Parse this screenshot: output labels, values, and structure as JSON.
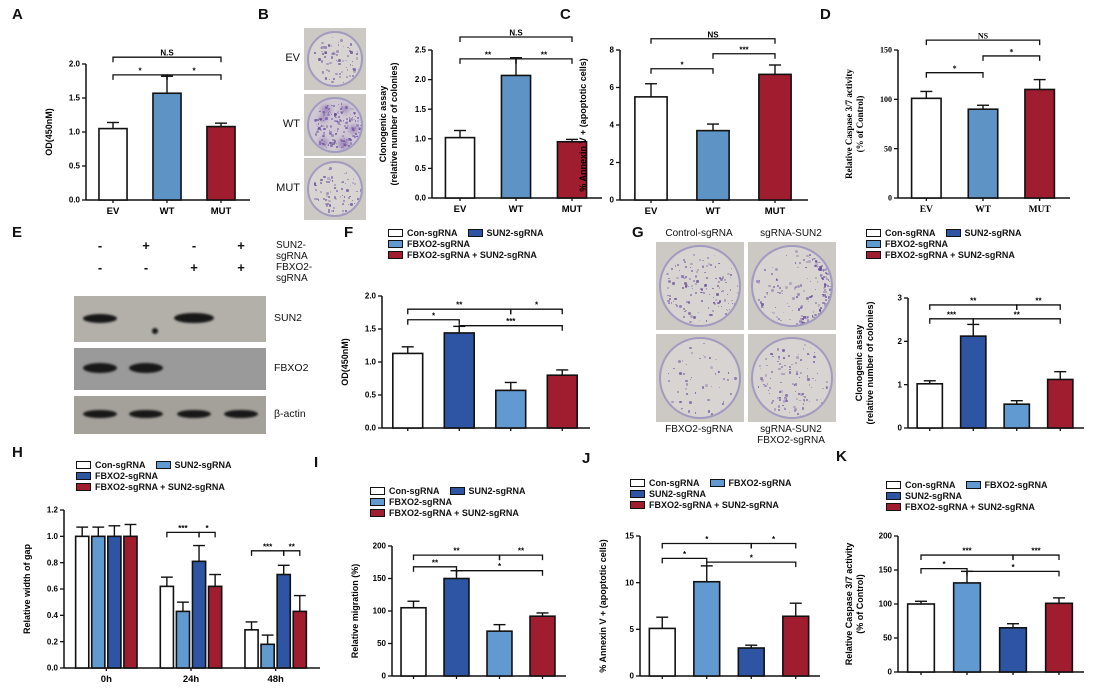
{
  "figure": {
    "background": "#ffffff"
  },
  "colors": {
    "white": "#ffffff",
    "blue_panelA": "#5e93c5",
    "blue_dark": "#2d55a4",
    "blue_light": "#6199d1",
    "red_dark": "#a01d30"
  },
  "panels": {
    "A": {
      "label": "A",
      "chart_data": {
        "type": "bar",
        "categories": [
          "EV",
          "WT",
          "MUT"
        ],
        "values": [
          1.05,
          1.57,
          1.08
        ],
        "errors": [
          0.09,
          0.25,
          0.05
        ],
        "bar_colors": [
          "#ffffff",
          "#5e93c5",
          "#a01d30"
        ],
        "ylabel": "OD(450nM)",
        "ylim": [
          0,
          2.0
        ],
        "yticks": [
          "0.0",
          "0.5",
          "1.0",
          "1.5",
          "2.0"
        ],
        "significance": [
          {
            "a": 0,
            "b": 1,
            "label": "*",
            "y": 1.84
          },
          {
            "a": 1,
            "b": 2,
            "label": "*",
            "y": 1.84
          },
          {
            "a": 0,
            "b": 2,
            "label": "N.S",
            "y": 2.1
          }
        ]
      }
    },
    "B": {
      "label": "B",
      "images": [
        {
          "label": "EV"
        },
        {
          "label": "WT"
        },
        {
          "label": "MUT"
        }
      ],
      "chart_data": {
        "type": "bar",
        "categories": [
          "EV",
          "WT",
          "MUT"
        ],
        "values": [
          1.02,
          2.07,
          0.95
        ],
        "errors": [
          0.12,
          0.3,
          0.04
        ],
        "bar_colors": [
          "#ffffff",
          "#5e93c5",
          "#a01d30"
        ],
        "ylabel": "Clonogenic assay\n(relative number of colonies)",
        "ylim": [
          0,
          2.5
        ],
        "yticks": [
          "0.0",
          "0.5",
          "1.0",
          "1.5",
          "2.0",
          "2.5"
        ],
        "significance": [
          {
            "a": 0,
            "b": 1,
            "label": "**",
            "y": 2.35
          },
          {
            "a": 1,
            "b": 2,
            "label": "**",
            "y": 2.35
          },
          {
            "a": 0,
            "b": 2,
            "label": "N.S",
            "y": 2.72
          }
        ]
      }
    },
    "C": {
      "label": "C",
      "chart_data": {
        "type": "bar",
        "categories": [
          "EV",
          "WT",
          "MUT"
        ],
        "values": [
          5.5,
          3.7,
          6.7
        ],
        "errors": [
          0.7,
          0.35,
          0.5
        ],
        "bar_colors": [
          "#ffffff",
          "#5e93c5",
          "#a01d30"
        ],
        "ylabel": "% Annexin V + (apoptotic cells)",
        "ylim": [
          0,
          8
        ],
        "yticks": [
          "0",
          "2",
          "4",
          "6",
          "8"
        ],
        "significance": [
          {
            "a": 0,
            "b": 1,
            "label": "*",
            "y": 7.0
          },
          {
            "a": 1,
            "b": 2,
            "label": "***",
            "y": 7.8
          },
          {
            "a": 0,
            "b": 2,
            "label": "NS",
            "y": 8.6
          }
        ]
      }
    },
    "D": {
      "label": "D",
      "chart_data": {
        "type": "bar",
        "categories": [
          "EV",
          "WT",
          "MUT"
        ],
        "values": [
          101,
          90,
          110
        ],
        "errors": [
          7,
          4,
          10
        ],
        "bar_colors": [
          "#ffffff",
          "#5e93c5",
          "#a01d30"
        ],
        "ylabel": "Relative Caspase 3/7 activity\n(% of Control)",
        "ylim": [
          0,
          150
        ],
        "yticks": [
          "0",
          "50",
          "100",
          "150"
        ],
        "significance": [
          {
            "a": 0,
            "b": 1,
            "label": "*",
            "y": 127
          },
          {
            "a": 1,
            "b": 2,
            "label": "*",
            "y": 144
          },
          {
            "a": 0,
            "b": 2,
            "label": "NS",
            "y": 160
          }
        ]
      }
    },
    "E": {
      "label": "E",
      "header_rows": [
        {
          "label": "SUN2-sgRNA",
          "signs": [
            "-",
            "+",
            "-",
            "+"
          ]
        },
        {
          "label": "FBXO2-sgRNA",
          "signs": [
            "-",
            "-",
            "+",
            "+"
          ]
        }
      ],
      "blots": [
        {
          "label": "SUN2",
          "bands": [
            1,
            0,
            1.2,
            0
          ],
          "artifact_dot": true
        },
        {
          "label": "FBXO2",
          "bands": [
            1,
            1,
            0,
            0
          ],
          "artifact_dot": false
        },
        {
          "label": "β-actin",
          "bands": [
            1,
            1,
            1,
            1
          ],
          "artifact_dot": false
        }
      ]
    },
    "F": {
      "label": "F",
      "chart_data": {
        "type": "bar",
        "categories": [
          "Con-sgRNA",
          "SUN2-sgRNA",
          "FBXO2-sgRNA",
          "FBXO2-sgRNA + SUN2-sgRNA"
        ],
        "values": [
          1.13,
          1.44,
          0.57,
          0.8
        ],
        "errors": [
          0.1,
          0.1,
          0.12,
          0.08
        ],
        "bar_colors": [
          "#ffffff",
          "#2d55a4",
          "#6199d1",
          "#a01d30"
        ],
        "ylabel": "OD(450nM)",
        "ylim": [
          0,
          2.0
        ],
        "yticks": [
          "0.0",
          "0.5",
          "1.0",
          "1.5",
          "2.0"
        ],
        "significance": [
          {
            "a": 0,
            "b": 1,
            "label": "*",
            "y": 1.64
          },
          {
            "a": 0,
            "b": 2,
            "label": "**",
            "y": 1.8
          },
          {
            "a": 1,
            "b": 3,
            "label": "***",
            "y": 1.55
          },
          {
            "a": 2,
            "b": 3,
            "label": "*",
            "y": 1.8
          }
        ],
        "legend": {
          "rows": [
            [
              0,
              1
            ],
            [
              2
            ],
            [
              3
            ]
          ],
          "items": [
            {
              "label": "Con-sgRNA",
              "color": "#ffffff"
            },
            {
              "label": "SUN2-sgRNA",
              "color": "#2d55a4"
            },
            {
              "label": "FBXO2-sgRNA",
              "color": "#6199d1"
            },
            {
              "label": "FBXO2-sgRNA + SUN2-sgRNA",
              "color": "#a01d30"
            }
          ]
        }
      }
    },
    "G": {
      "label": "G",
      "images": [
        {
          "label": "Control-sgRNA"
        },
        {
          "label": "sgRNA-SUN2"
        },
        {
          "label": "FBXO2-sgRNA"
        },
        {
          "label": "sgRNA-SUN2\nFBXO2-sgRNA"
        }
      ],
      "chart_data": {
        "type": "bar",
        "categories": [
          "Con-sgRNA",
          "SUN2-sgRNA",
          "FBXO2-sgRNA",
          "FBXO2-sgRNA + SUN2-sgRNA"
        ],
        "values": [
          1.02,
          2.12,
          0.55,
          1.12
        ],
        "errors": [
          0.07,
          0.27,
          0.08,
          0.18
        ],
        "bar_colors": [
          "#ffffff",
          "#2d55a4",
          "#6199d1",
          "#a01d30"
        ],
        "ylabel": "Clonogenic assay\n(relative number of colonies)",
        "ylim": [
          0,
          3
        ],
        "yticks": [
          "0",
          "1",
          "2",
          "3"
        ],
        "significance": [
          {
            "a": 0,
            "b": 1,
            "label": "***",
            "y": 2.52
          },
          {
            "a": 0,
            "b": 2,
            "label": "**",
            "y": 2.84
          },
          {
            "a": 1,
            "b": 3,
            "label": "**",
            "y": 2.52
          },
          {
            "a": 2,
            "b": 3,
            "label": "**",
            "y": 2.84
          }
        ],
        "legend": {
          "rows": [
            [
              0,
              1
            ],
            [
              2
            ],
            [
              3
            ]
          ],
          "items": [
            {
              "label": "Con-sgRNA",
              "color": "#ffffff"
            },
            {
              "label": "SUN2-sgRNA",
              "color": "#2d55a4"
            },
            {
              "label": "FBXO2-sgRNA",
              "color": "#6199d1"
            },
            {
              "label": "FBXO2-sgRNA + SUN2-sgRNA",
              "color": "#a01d30"
            }
          ]
        }
      }
    },
    "H": {
      "label": "H",
      "chart_data": {
        "type": "bar",
        "categories": [
          "0h",
          "24h",
          "48h"
        ],
        "series": [
          {
            "name": "Con-sgRNA",
            "color": "#ffffff",
            "values": [
              1.0,
              0.62,
              0.29
            ],
            "errors": [
              0.07,
              0.07,
              0.06
            ]
          },
          {
            "name": "SUN2-sgRNA",
            "color": "#6199d1",
            "values": [
              1.0,
              0.43,
              0.18
            ],
            "errors": [
              0.07,
              0.07,
              0.07
            ]
          },
          {
            "name": "FBXO2-sgRNA",
            "color": "#2d55a4",
            "values": [
              1.0,
              0.81,
              0.71
            ],
            "errors": [
              0.08,
              0.12,
              0.07
            ]
          },
          {
            "name": "FBXO2-sgRNA + SUN2-sgRNA",
            "color": "#a01d30",
            "values": [
              1.0,
              0.62,
              0.43
            ],
            "errors": [
              0.09,
              0.09,
              0.12
            ]
          }
        ],
        "ylabel": "Relative width of gap",
        "ylim": [
          0,
          1.2
        ],
        "yticks": [
          "0.0",
          "0.2",
          "0.4",
          "0.6",
          "0.8",
          "1.0",
          "1.2"
        ],
        "significance": [
          {
            "a": [
              1,
              0
            ],
            "b": [
              1,
              2
            ],
            "label": "***",
            "y": 1.03
          },
          {
            "a": [
              1,
              2
            ],
            "b": [
              1,
              3
            ],
            "label": "*",
            "y": 1.03
          },
          {
            "a": [
              2,
              0
            ],
            "b": [
              2,
              2
            ],
            "label": "***",
            "y": 0.89
          },
          {
            "a": [
              2,
              2
            ],
            "b": [
              2,
              3
            ],
            "label": "**",
            "y": 0.89
          }
        ],
        "legend": {
          "rows": [
            [
              0,
              1
            ],
            [
              2
            ],
            [
              3
            ]
          ],
          "items": [
            {
              "label": "Con-sgRNA",
              "color": "#ffffff"
            },
            {
              "label": "SUN2-sgRNA",
              "color": "#6199d1"
            },
            {
              "label": "FBXO2-sgRNA",
              "color": "#2d55a4"
            },
            {
              "label": "FBXO2-sgRNA + SUN2-sgRNA",
              "color": "#a01d30"
            }
          ]
        }
      }
    },
    "I": {
      "label": "I",
      "chart_data": {
        "type": "bar",
        "categories": [
          "Con-sgRNA",
          "SUN2-sgRNA",
          "FBXO2-sgRNA",
          "FBXO2-sgRNA + SUN2-sgRNA"
        ],
        "values": [
          105,
          150,
          69,
          92
        ],
        "errors": [
          10,
          12,
          10,
          5
        ],
        "bar_colors": [
          "#ffffff",
          "#2d55a4",
          "#6199d1",
          "#a01d30"
        ],
        "ylabel": "Relative migration (%)",
        "ylim": [
          0,
          200
        ],
        "yticks": [
          "0",
          "50",
          "100",
          "150",
          "200"
        ],
        "significance": [
          {
            "a": 0,
            "b": 1,
            "label": "**",
            "y": 168
          },
          {
            "a": 0,
            "b": 2,
            "label": "**",
            "y": 186
          },
          {
            "a": 1,
            "b": 3,
            "label": "*",
            "y": 162
          },
          {
            "a": 2,
            "b": 3,
            "label": "**",
            "y": 186
          }
        ],
        "legend": {
          "rows": [
            [
              0,
              1
            ],
            [
              2
            ],
            [
              3
            ]
          ],
          "items": [
            {
              "label": "Con-sgRNA",
              "color": "#ffffff"
            },
            {
              "label": "SUN2-sgRNA",
              "color": "#2d55a4"
            },
            {
              "label": "FBXO2-sgRNA",
              "color": "#6199d1"
            },
            {
              "label": "FBXO2-sgRNA + SUN2-sgRNA",
              "color": "#a01d30"
            }
          ]
        }
      }
    },
    "J": {
      "label": "J",
      "chart_data": {
        "type": "bar",
        "categories": [
          "Con-sgRNA",
          "FBXO2-sgRNA",
          "SUN2-sgRNA",
          "FBXO2-sgRNA + SUN2-sgRNA"
        ],
        "values": [
          5.1,
          10.1,
          3.0,
          6.4
        ],
        "errors": [
          1.2,
          1.7,
          0.3,
          1.4
        ],
        "bar_colors": [
          "#ffffff",
          "#6199d1",
          "#2d55a4",
          "#a01d30"
        ],
        "ylabel": "% Annexin V + (apoptotic cells)",
        "ylim": [
          0,
          15
        ],
        "yticks": [
          "0",
          "5",
          "10",
          "15"
        ],
        "significance": [
          {
            "a": 0,
            "b": 1,
            "label": "*",
            "y": 12.6
          },
          {
            "a": 0,
            "b": 2,
            "label": "*",
            "y": 14.2
          },
          {
            "a": 1,
            "b": 3,
            "label": "*",
            "y": 12.2
          },
          {
            "a": 2,
            "b": 3,
            "label": "*",
            "y": 14.2
          }
        ],
        "legend": {
          "rows": [
            [
              0,
              1
            ],
            [
              2
            ],
            [
              3
            ]
          ],
          "items": [
            {
              "label": "Con-sgRNA",
              "color": "#ffffff"
            },
            {
              "label": "FBXO2-sgRNA",
              "color": "#6199d1"
            },
            {
              "label": "SUN2-sgRNA",
              "color": "#2d55a4"
            },
            {
              "label": "FBXO2-sgRNA + SUN2-sgRNA",
              "color": "#a01d30"
            }
          ]
        }
      }
    },
    "K": {
      "label": "K",
      "chart_data": {
        "type": "bar",
        "categories": [
          "Con-sgRNA",
          "FBXO2-sgRNA",
          "SUN2-sgRNA",
          "FBXO2-sgRNA + SUN2-sgRNA"
        ],
        "values": [
          100,
          131,
          65,
          101
        ],
        "errors": [
          4,
          17,
          6,
          8
        ],
        "bar_colors": [
          "#ffffff",
          "#6199d1",
          "#2d55a4",
          "#a01d30"
        ],
        "ylabel": "Relative Caspase 3/7 activity\n(% of Control)",
        "ylim": [
          0,
          200
        ],
        "yticks": [
          "0",
          "50",
          "100",
          "150",
          "200"
        ],
        "significance": [
          {
            "a": 0,
            "b": 1,
            "label": "*",
            "y": 152
          },
          {
            "a": 0,
            "b": 2,
            "label": "***",
            "y": 172
          },
          {
            "a": 1,
            "b": 3,
            "label": "*",
            "y": 148
          },
          {
            "a": 2,
            "b": 3,
            "label": "***",
            "y": 172
          }
        ],
        "legend": {
          "rows": [
            [
              0,
              1
            ],
            [
              2
            ],
            [
              3
            ]
          ],
          "items": [
            {
              "label": "Con-sgRNA",
              "color": "#ffffff"
            },
            {
              "label": "FBXO2-sgRNA",
              "color": "#6199d1"
            },
            {
              "label": "SUN2-sgRNA",
              "color": "#2d55a4"
            },
            {
              "label": "FBXO2-sgRNA + SUN2-sgRNA",
              "color": "#a01d30"
            }
          ]
        }
      }
    }
  }
}
